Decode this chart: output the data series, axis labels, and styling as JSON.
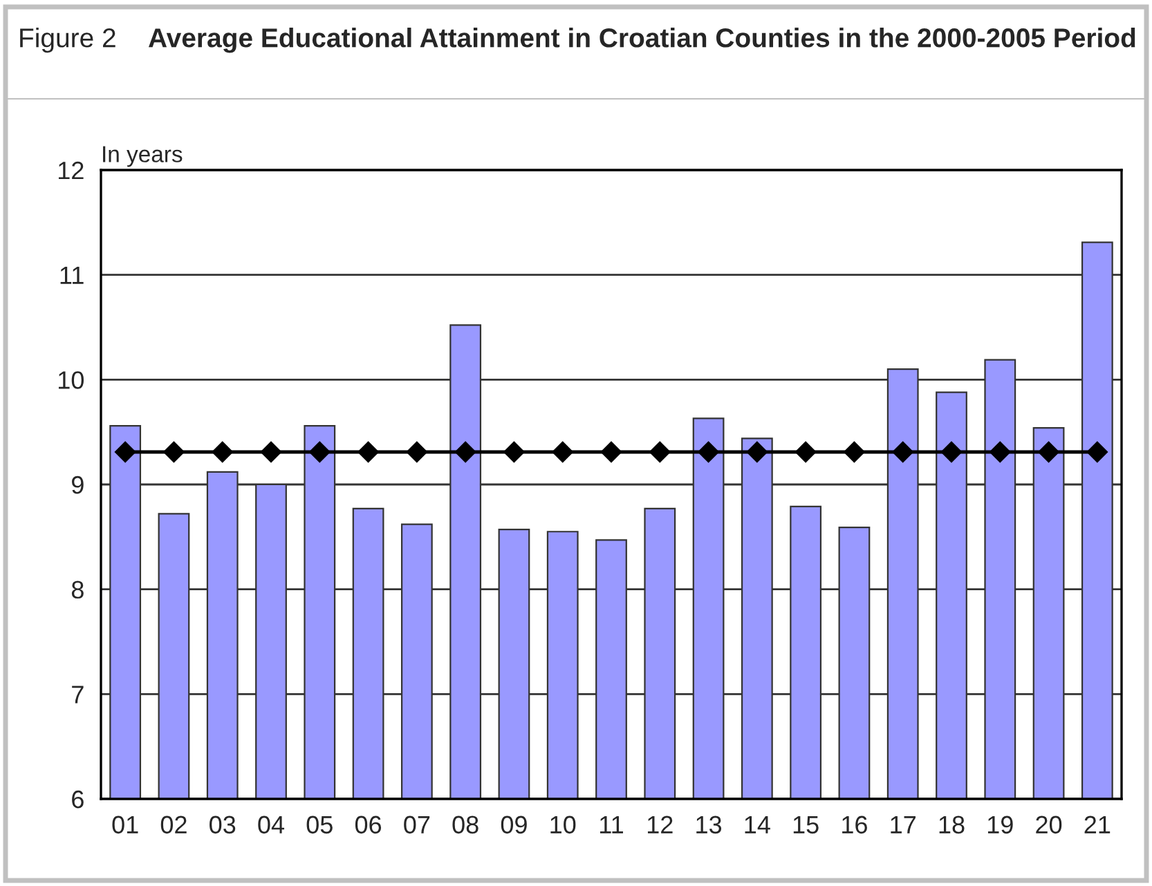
{
  "chart_data": {
    "type": "bar",
    "title": "Average Educational Attainment in Croatian Counties in the 2000-2005 Period",
    "ylabel": "In years",
    "annotations": [
      "Figure 2"
    ],
    "categories": [
      "01",
      "02",
      "03",
      "04",
      "05",
      "06",
      "07",
      "08",
      "09",
      "10",
      "11",
      "12",
      "13",
      "14",
      "15",
      "16",
      "17",
      "18",
      "19",
      "20",
      "21"
    ],
    "series": [
      {
        "color": "#9999ff",
        "values": [
          9.56,
          8.72,
          9.12,
          9.0,
          9.56,
          8.77,
          8.62,
          10.52,
          8.57,
          8.55,
          8.47,
          8.77,
          9.63,
          9.44,
          8.79,
          8.59,
          10.1,
          9.88,
          10.19,
          9.54,
          11.31
        ]
      },
      {
        "type": "line",
        "color": "#000000",
        "marker": "diamond",
        "values": [
          9.31,
          9.31,
          9.31,
          9.31,
          9.31,
          9.31,
          9.31,
          9.31,
          9.31,
          9.31,
          9.31,
          9.31,
          9.31,
          9.31,
          9.31,
          9.31,
          9.31,
          9.31,
          9.31,
          9.31,
          9.31
        ]
      }
    ],
    "ylim": [
      6,
      12
    ],
    "yticks": [
      6,
      7,
      8,
      9,
      10,
      11,
      12
    ],
    "grid": "y",
    "legend": false
  }
}
